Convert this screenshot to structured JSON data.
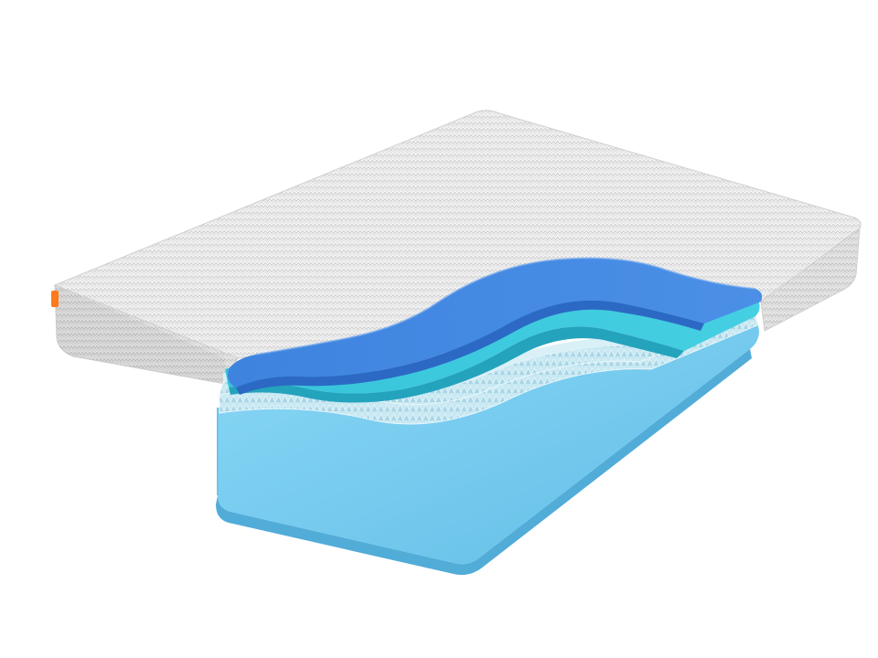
{
  "scene": {
    "subject": "mattress-cutaway",
    "colors": {
      "background": "#ffffff",
      "cover_light": "#f4f4f4",
      "cover_shade": "#d9d9d9",
      "cover_knit": "#c4c4c4",
      "top_foam": "#3f86e0",
      "top_foam_dark": "#2f6fcc",
      "second_foam": "#39c6dc",
      "second_foam_dark": "#27a9c2",
      "egg_crate": "#bfe3ef",
      "egg_crate_dark": "#9fd0e2",
      "base_foam": "#7fd0f2",
      "base_foam_dark": "#5fb8e3",
      "label_tag": "#ff7a1a"
    }
  }
}
